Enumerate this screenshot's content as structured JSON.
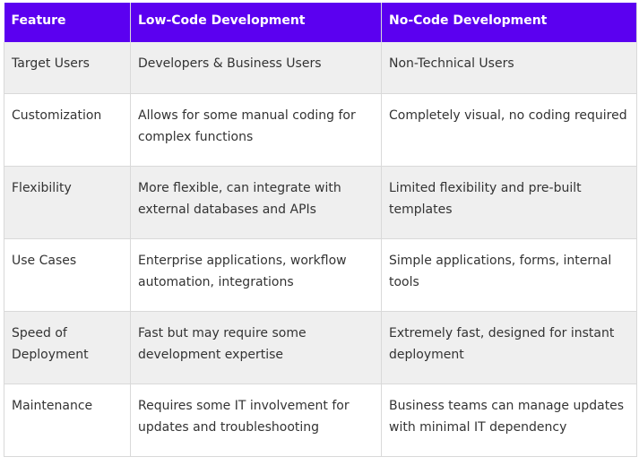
{
  "table": {
    "headers": [
      "Feature",
      "Low-Code Development",
      "No-Code Development"
    ],
    "rows": [
      [
        "Target Users",
        "Developers & Business Users",
        "Non-Technical Users"
      ],
      [
        "Customization",
        "Allows for some manual coding for complex functions",
        "Completely visual, no coding required"
      ],
      [
        "Flexibility",
        "More flexible, can integrate with external databases and APIs",
        "Limited flexibility and pre-built templates"
      ],
      [
        "Use Cases",
        "Enterprise applications, workflow automation, integrations",
        "Simple applications, forms, internal tools"
      ],
      [
        "Speed of Deployment",
        "Fast but may require some development expertise",
        "Extremely fast, designed for instant deployment"
      ],
      [
        "Maintenance",
        "Requires some IT involvement for updates and troubleshooting",
        "Business teams can manage updates with minimal IT dependency"
      ]
    ]
  },
  "colors": {
    "header_background": "#5b00f0",
    "header_text": "#ffffff",
    "alt_row_background": "#efefef",
    "body_text": "#333333",
    "border": "#d9d9d9"
  }
}
